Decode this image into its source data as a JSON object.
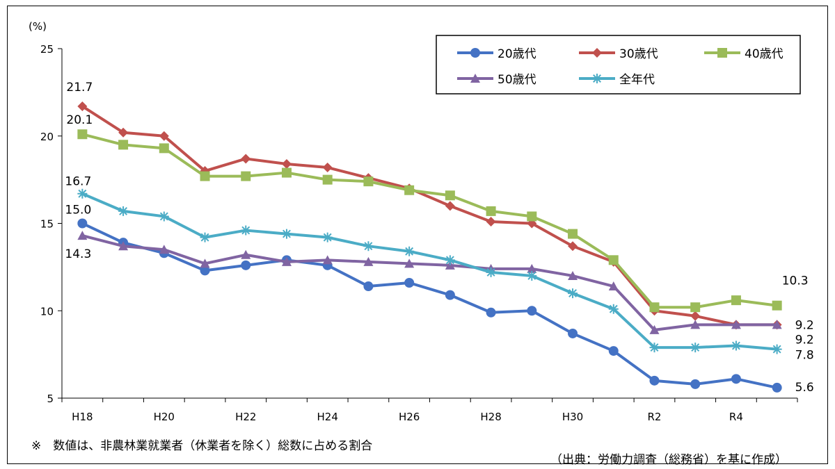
{
  "chart_data": {
    "type": "line",
    "ylabel": "(%)",
    "ylim": [
      5,
      25
    ],
    "yticks": [
      5,
      10,
      15,
      20,
      25
    ],
    "categories": [
      "H18",
      "H19",
      "H20",
      "H21",
      "H22",
      "H23",
      "H24",
      "H25",
      "H26",
      "H27",
      "H28",
      "H29",
      "H30",
      "H31",
      "R2",
      "R3",
      "R4",
      "R5"
    ],
    "xtick_labels": [
      "H18",
      "",
      "H20",
      "",
      "H22",
      "",
      "H24",
      "",
      "H26",
      "",
      "H28",
      "",
      "H30",
      "",
      "R2",
      "",
      "R4",
      ""
    ],
    "grid": false,
    "legend_position": "top-right",
    "series": [
      {
        "name": "20歳代",
        "color": "#4472C4",
        "marker": "circle",
        "values": [
          15.0,
          13.9,
          13.3,
          12.3,
          12.6,
          12.9,
          12.6,
          11.4,
          11.6,
          10.9,
          9.9,
          10.0,
          8.7,
          7.7,
          6.0,
          5.8,
          6.1,
          5.6
        ]
      },
      {
        "name": "30歳代",
        "color": "#C0504D",
        "marker": "diamond",
        "values": [
          21.7,
          20.2,
          20.0,
          18.0,
          18.7,
          18.4,
          18.2,
          17.6,
          17.0,
          16.0,
          15.1,
          15.0,
          13.7,
          12.8,
          10.0,
          9.7,
          9.2,
          9.2
        ]
      },
      {
        "name": "40歳代",
        "color": "#9BBB59",
        "marker": "square",
        "values": [
          20.1,
          19.5,
          19.3,
          17.7,
          17.7,
          17.9,
          17.5,
          17.4,
          16.9,
          16.6,
          15.7,
          15.4,
          14.4,
          12.9,
          10.2,
          10.2,
          10.6,
          10.3
        ]
      },
      {
        "name": "50歳代",
        "color": "#8064A2",
        "marker": "triangle",
        "values": [
          14.3,
          13.7,
          13.5,
          12.7,
          13.2,
          12.8,
          12.9,
          12.8,
          12.7,
          12.6,
          12.4,
          12.4,
          12.0,
          11.4,
          8.9,
          9.2,
          9.2,
          9.2
        ]
      },
      {
        "name": "全年代",
        "color": "#4BACC6",
        "marker": "star",
        "values": [
          16.7,
          15.7,
          15.4,
          14.2,
          14.6,
          14.4,
          14.2,
          13.7,
          13.4,
          12.9,
          12.2,
          12.0,
          11.0,
          10.1,
          7.9,
          7.9,
          8.0,
          7.8
        ]
      }
    ],
    "data_labels": [
      {
        "series": "30歳代",
        "index": 0,
        "text": "21.7"
      },
      {
        "series": "40歳代",
        "index": 0,
        "text": "20.1"
      },
      {
        "series": "全年代",
        "index": 0,
        "text": "16.7"
      },
      {
        "series": "20歳代",
        "index": 0,
        "text": "15.0"
      },
      {
        "series": "50歳代",
        "index": 0,
        "text": "14.3"
      },
      {
        "series": "40歳代",
        "index": 17,
        "text": "10.3"
      },
      {
        "series": "30歳代",
        "index": 17,
        "text": "9.2"
      },
      {
        "series": "50歳代",
        "index": 17,
        "text": "9.2"
      },
      {
        "series": "全年代",
        "index": 17,
        "text": "7.8"
      },
      {
        "series": "20歳代",
        "index": 17,
        "text": "5.6"
      }
    ]
  },
  "notes": {
    "footnote": "※　数値は、非農林業就業者（休業者を除く）総数に占める割合",
    "source": "（出典：労働力調査（総務省）を基に作成）"
  }
}
